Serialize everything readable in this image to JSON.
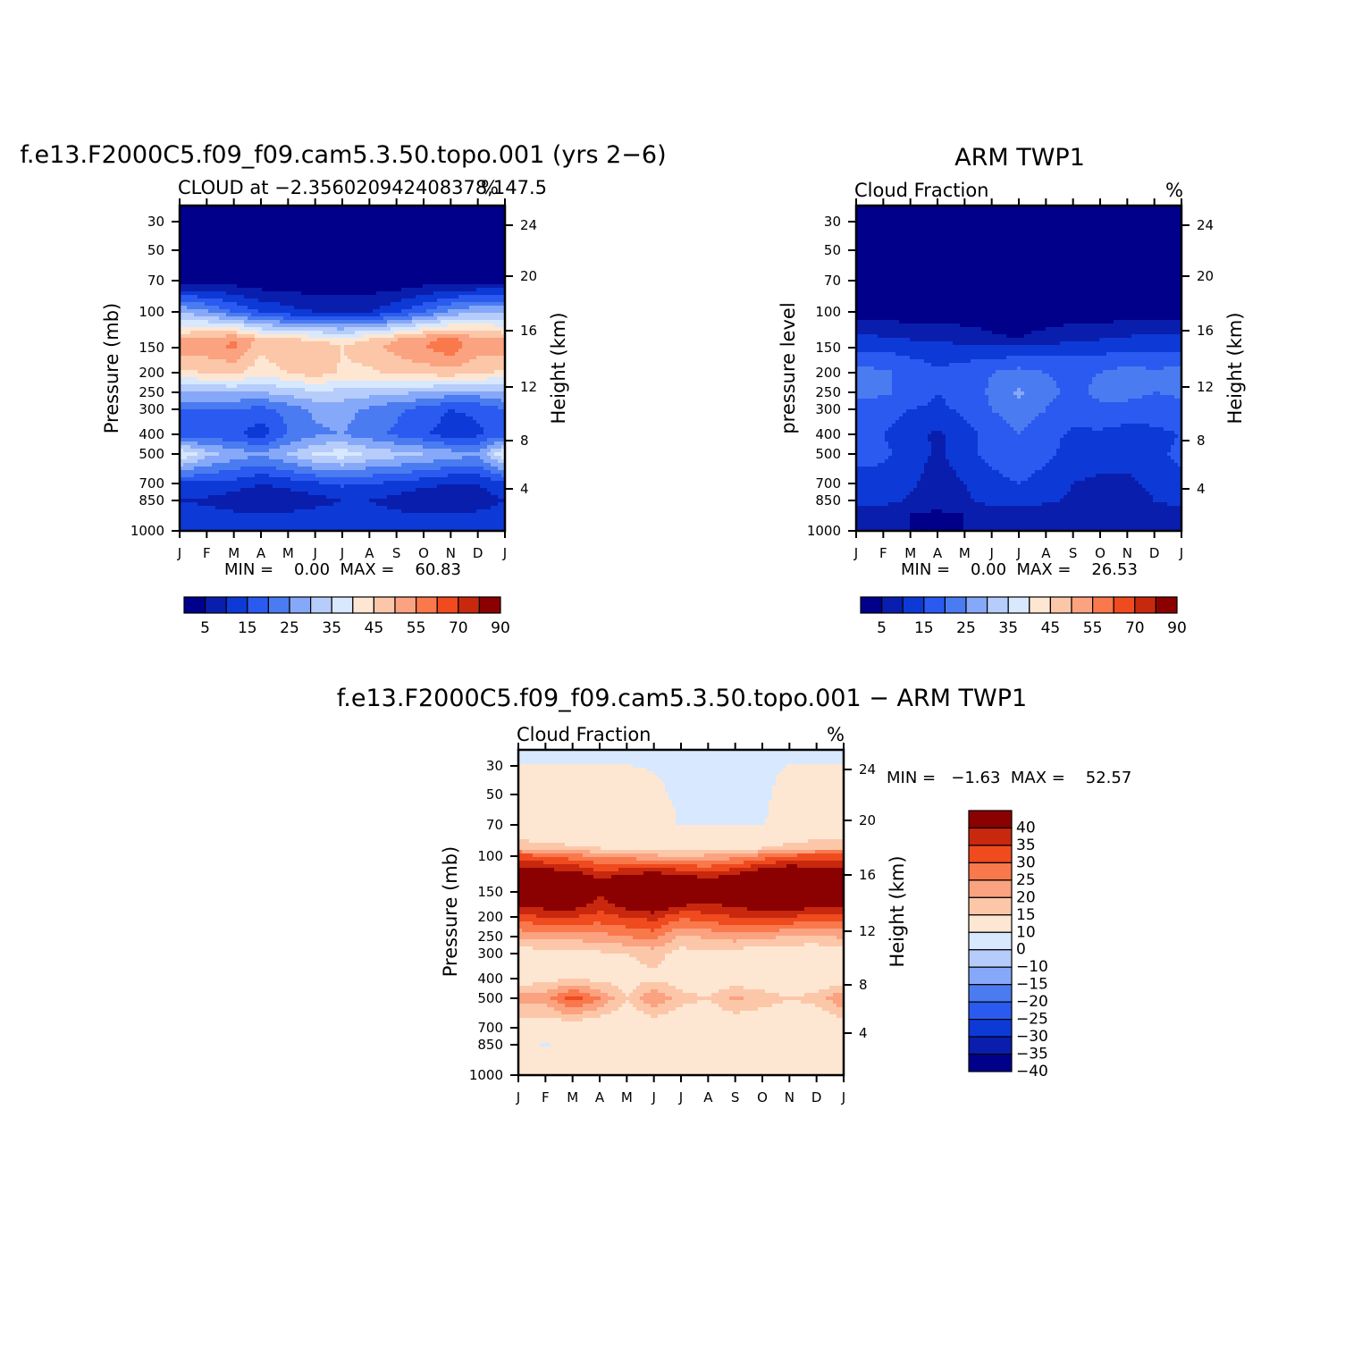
{
  "colors": {
    "cloud_scale": [
      "#00008b",
      "#0a1ead",
      "#0d39d6",
      "#2a5aef",
      "#4a7bf0",
      "#86a8f8",
      "#b6ccfa",
      "#d8e8fe",
      "#fde7d3",
      "#fcc7a9",
      "#fba280",
      "#f9784c",
      "#f04a1f",
      "#c8280e",
      "#8b0000"
    ],
    "diff_scale": [
      "#00008b",
      "#0a1ead",
      "#0d39d6",
      "#2a5aef",
      "#4a7bf0",
      "#86a8f8",
      "#b6ccfa",
      "#d8e8fe",
      "#fde7d3",
      "#fcc7a9",
      "#fba280",
      "#f9784c",
      "#f04a1f",
      "#c8280e",
      "#8b0000"
    ]
  },
  "chart_data": [
    {
      "type": "heatmap",
      "title": "f.e13.F2000C5.f09_f09.cam5.3.50.topo.001 (yrs 2−6)",
      "subtitle_left": "CLOUD at −2.356020942408378,147.5",
      "subtitle_right": "%",
      "ylabel": "Pressure (mb)",
      "ylabel_right": "Height (km)",
      "x_ticks": [
        "J",
        "F",
        "M",
        "A",
        "M",
        "J",
        "J",
        "A",
        "S",
        "O",
        "N",
        "D",
        "J"
      ],
      "y_ticks": [
        "30",
        "50",
        "70",
        "100",
        "150",
        "200",
        "250",
        "300",
        "400",
        "500",
        "700",
        "850",
        "1000"
      ],
      "y_ticks_right": [
        "24",
        "20",
        "16",
        "12",
        "8",
        "4"
      ],
      "stats": "MIN =    0.00  MAX =    60.83",
      "colorbar_labels": [
        "5",
        "15",
        "25",
        "35",
        "45",
        "55",
        "70",
        "90"
      ],
      "contour_levels": [
        5,
        10,
        15,
        20,
        25,
        30,
        35,
        40,
        45,
        50,
        55,
        60,
        70,
        80,
        90
      ],
      "ylim": [
        1000,
        30
      ],
      "profile": [
        {
          "p": 30,
          "v": [
            0,
            0,
            0,
            0,
            0,
            0,
            0,
            0,
            0,
            0,
            0,
            0,
            0
          ]
        },
        {
          "p": 70,
          "v": [
            2,
            2,
            2,
            1,
            1,
            1,
            1,
            1,
            1,
            2,
            2,
            2,
            2
          ]
        },
        {
          "p": 100,
          "v": [
            30,
            26,
            20,
            15,
            12,
            10,
            9,
            10,
            14,
            20,
            26,
            30,
            30
          ]
        },
        {
          "p": 130,
          "v": [
            50,
            52,
            55,
            48,
            46,
            44,
            43,
            45,
            50,
            54,
            56,
            52,
            50
          ]
        },
        {
          "p": 150,
          "v": [
            52,
            53,
            56,
            46,
            50,
            50,
            45,
            48,
            52,
            55,
            58,
            52,
            52
          ]
        },
        {
          "p": 200,
          "v": [
            44,
            45,
            46,
            42,
            45,
            48,
            44,
            44,
            46,
            47,
            48,
            46,
            44
          ]
        },
        {
          "p": 250,
          "v": [
            30,
            30,
            30,
            30,
            32,
            34,
            33,
            32,
            31,
            30,
            28,
            28,
            30
          ]
        },
        {
          "p": 300,
          "v": [
            20,
            20,
            20,
            18,
            22,
            26,
            27,
            24,
            21,
            18,
            15,
            16,
            20
          ]
        },
        {
          "p": 400,
          "v": [
            18,
            17,
            16,
            12,
            20,
            24,
            25,
            22,
            19,
            16,
            12,
            14,
            18
          ]
        },
        {
          "p": 500,
          "v": [
            40,
            32,
            28,
            26,
            30,
            36,
            38,
            34,
            32,
            30,
            28,
            26,
            40
          ]
        },
        {
          "p": 700,
          "v": [
            14,
            14,
            13,
            10,
            12,
            14,
            16,
            15,
            14,
            12,
            10,
            10,
            14
          ]
        },
        {
          "p": 850,
          "v": [
            10,
            9,
            7,
            5,
            6,
            8,
            10,
            10,
            8,
            5,
            5,
            7,
            10
          ]
        },
        {
          "p": 1000,
          "v": [
            12,
            12,
            11,
            10,
            11,
            12,
            12,
            12,
            11,
            10,
            10,
            11,
            12
          ]
        }
      ]
    },
    {
      "type": "heatmap",
      "title": "ARM TWP1",
      "subtitle_left": "Cloud Fraction",
      "subtitle_right": "%",
      "ylabel": "pressure level",
      "ylabel_right": "Height (km)",
      "x_ticks": [
        "J",
        "F",
        "M",
        "A",
        "M",
        "J",
        "J",
        "A",
        "S",
        "O",
        "N",
        "D",
        "J"
      ],
      "y_ticks": [
        "30",
        "50",
        "70",
        "100",
        "150",
        "200",
        "250",
        "300",
        "400",
        "500",
        "700",
        "850",
        "1000"
      ],
      "y_ticks_right": [
        "24",
        "20",
        "16",
        "12",
        "8",
        "4"
      ],
      "stats": "MIN =    0.00  MAX =    26.53",
      "colorbar_labels": [
        "5",
        "15",
        "25",
        "35",
        "45",
        "55",
        "70",
        "90"
      ],
      "contour_levels": [
        5,
        10,
        15,
        20,
        25,
        30,
        35,
        40,
        45,
        50,
        55,
        60,
        70,
        80,
        90
      ],
      "ylim": [
        1000,
        30
      ],
      "profile": [
        {
          "p": 30,
          "v": [
            0,
            0,
            0,
            0,
            0,
            0,
            0,
            0,
            0,
            0,
            0,
            0,
            0
          ]
        },
        {
          "p": 100,
          "v": [
            2,
            2,
            2,
            2,
            2,
            2,
            2,
            2,
            2,
            2,
            2,
            2,
            2
          ]
        },
        {
          "p": 130,
          "v": [
            12,
            11,
            10,
            9,
            8,
            6,
            5,
            7,
            9,
            10,
            11,
            12,
            12
          ]
        },
        {
          "p": 150,
          "v": [
            14,
            14,
            13,
            12,
            12,
            11,
            11,
            12,
            13,
            13,
            14,
            14,
            14
          ]
        },
        {
          "p": 200,
          "v": [
            22,
            21,
            18,
            16,
            17,
            20,
            22,
            20,
            19,
            20,
            22,
            21,
            22
          ]
        },
        {
          "p": 250,
          "v": [
            21,
            21,
            18,
            15,
            17,
            21,
            26,
            21,
            19,
            21,
            22,
            20,
            21
          ]
        },
        {
          "p": 300,
          "v": [
            18,
            17,
            15,
            14,
            16,
            20,
            23,
            20,
            18,
            19,
            18,
            17,
            18
          ]
        },
        {
          "p": 400,
          "v": [
            15,
            15,
            12,
            9,
            13,
            17,
            20,
            17,
            14,
            14,
            13,
            14,
            15
          ]
        },
        {
          "p": 500,
          "v": [
            16,
            16,
            13,
            9,
            13,
            17,
            19,
            16,
            13,
            12,
            12,
            14,
            16
          ]
        },
        {
          "p": 700,
          "v": [
            14,
            13,
            11,
            7,
            10,
            13,
            15,
            13,
            10,
            9,
            9,
            11,
            14
          ]
        },
        {
          "p": 850,
          "v": [
            13,
            12,
            9,
            7,
            9,
            12,
            13,
            11,
            9,
            8,
            8,
            10,
            13
          ]
        },
        {
          "p": 1000,
          "v": [
            6,
            6,
            5,
            4,
            5,
            6,
            6,
            6,
            5,
            5,
            5,
            6,
            6
          ]
        }
      ]
    },
    {
      "type": "heatmap",
      "title": "f.e13.F2000C5.f09_f09.cam5.3.50.topo.001 − ARM TWP1",
      "subtitle_left": "Cloud Fraction",
      "subtitle_right": "%",
      "ylabel": "Pressure (mb)",
      "ylabel_right": "Height (km)",
      "x_ticks": [
        "J",
        "F",
        "M",
        "A",
        "M",
        "J",
        "J",
        "A",
        "S",
        "O",
        "N",
        "D",
        "J"
      ],
      "y_ticks": [
        "30",
        "50",
        "70",
        "100",
        "150",
        "200",
        "250",
        "300",
        "400",
        "500",
        "700",
        "850",
        "1000"
      ],
      "y_ticks_right": [
        "24",
        "20",
        "16",
        "12",
        "8",
        "4"
      ],
      "stats": "MIN =   −1.63  MAX =    52.57",
      "colorbar_labels": [
        "40",
        "35",
        "30",
        "25",
        "20",
        "15",
        "10",
        "0",
        "−10",
        "−15",
        "−20",
        "−25",
        "−30",
        "−35",
        "−40"
      ],
      "contour_levels": [
        -40,
        -35,
        -30,
        -25,
        -20,
        -15,
        -10,
        0,
        10,
        15,
        20,
        25,
        30,
        35,
        40
      ],
      "ylim": [
        1000,
        30
      ],
      "profile": [
        {
          "p": 30,
          "v": [
            -0.5,
            -0.5,
            -0.5,
            -0.5,
            -0.5,
            -0.5,
            -0.5,
            -0.5,
            -0.5,
            -0.5,
            -0.5,
            -0.5,
            -0.5
          ]
        },
        {
          "p": 50,
          "v": [
            1,
            1,
            1,
            1,
            1,
            0.5,
            -0.5,
            -0.5,
            -0.5,
            -0.5,
            1,
            1,
            1
          ]
        },
        {
          "p": 70,
          "v": [
            3,
            3,
            3,
            3,
            2,
            2,
            -0.3,
            -0.3,
            -0.3,
            -0.3,
            2,
            3,
            3
          ]
        },
        {
          "p": 90,
          "v": [
            14,
            12,
            11,
            10,
            9,
            8,
            7,
            8,
            9,
            10,
            12,
            14,
            14
          ]
        },
        {
          "p": 100,
          "v": [
            28,
            25,
            22,
            20,
            18,
            16,
            15,
            16,
            18,
            22,
            26,
            28,
            28
          ]
        },
        {
          "p": 130,
          "v": [
            45,
            46,
            48,
            38,
            44,
            48,
            45,
            40,
            44,
            50,
            52,
            46,
            45
          ]
        },
        {
          "p": 150,
          "v": [
            44,
            46,
            48,
            36,
            46,
            50,
            46,
            40,
            44,
            48,
            50,
            46,
            44
          ]
        },
        {
          "p": 200,
          "v": [
            28,
            30,
            30,
            28,
            30,
            32,
            26,
            28,
            30,
            30,
            30,
            28,
            28
          ]
        },
        {
          "p": 250,
          "v": [
            16,
            17,
            17,
            18,
            20,
            22,
            14,
            16,
            18,
            16,
            15,
            14,
            16
          ]
        },
        {
          "p": 300,
          "v": [
            7,
            7,
            8,
            9,
            10,
            12,
            8,
            8,
            7,
            6,
            5,
            5,
            7
          ]
        },
        {
          "p": 400,
          "v": [
            6,
            8,
            10,
            8,
            7,
            9,
            7,
            6,
            6,
            5,
            4,
            5,
            6
          ]
        },
        {
          "p": 500,
          "v": [
            18,
            18,
            28,
            20,
            10,
            20,
            12,
            10,
            16,
            13,
            10,
            12,
            20
          ]
        },
        {
          "p": 700,
          "v": [
            5,
            5,
            5,
            4,
            4,
            4,
            4,
            4,
            4,
            4,
            4,
            4,
            5
          ]
        },
        {
          "p": 850,
          "v": [
            3,
            -1,
            3,
            3,
            3,
            3,
            3,
            3,
            3,
            3,
            3,
            2,
            3
          ]
        },
        {
          "p": 1000,
          "v": [
            5,
            5,
            6,
            6,
            6,
            6,
            6,
            6,
            6,
            5,
            5,
            5,
            5
          ]
        }
      ]
    }
  ]
}
